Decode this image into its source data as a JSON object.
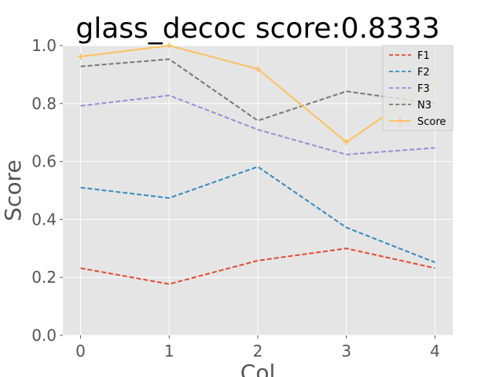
{
  "chart_data": {
    "type": "line",
    "title": "glass_decoc score:0.8333",
    "xlabel": "Col",
    "ylabel": "Score",
    "x": [
      0,
      1,
      2,
      3,
      4
    ],
    "xlim": [
      -0.2,
      4.2
    ],
    "ylim": [
      0.0,
      1.0
    ],
    "xticks": [
      "0",
      "1",
      "2",
      "3",
      "4"
    ],
    "yticks": [
      "0.0",
      "0.2",
      "0.4",
      "0.6",
      "0.8",
      "1.0"
    ],
    "grid": true,
    "legend_position": "top-right",
    "series": [
      {
        "name": "F1",
        "values": [
          0.232,
          0.177,
          0.258,
          0.3,
          0.232
        ],
        "color": "#E24A33",
        "style": "dashed"
      },
      {
        "name": "F2",
        "values": [
          0.51,
          0.474,
          0.582,
          0.372,
          0.252
        ],
        "color": "#348ABD",
        "style": "dashed"
      },
      {
        "name": "F3",
        "values": [
          0.792,
          0.828,
          0.71,
          0.624,
          0.647
        ],
        "color": "#988ED5",
        "style": "dashed"
      },
      {
        "name": "N3",
        "values": [
          0.928,
          0.953,
          0.741,
          0.842,
          0.8
        ],
        "color": "#777777",
        "style": "dashed"
      },
      {
        "name": "Score",
        "values": [
          0.962,
          1.0,
          0.919,
          0.667,
          0.875
        ],
        "color": "#FBC15E",
        "style": "solid-plus"
      }
    ]
  }
}
